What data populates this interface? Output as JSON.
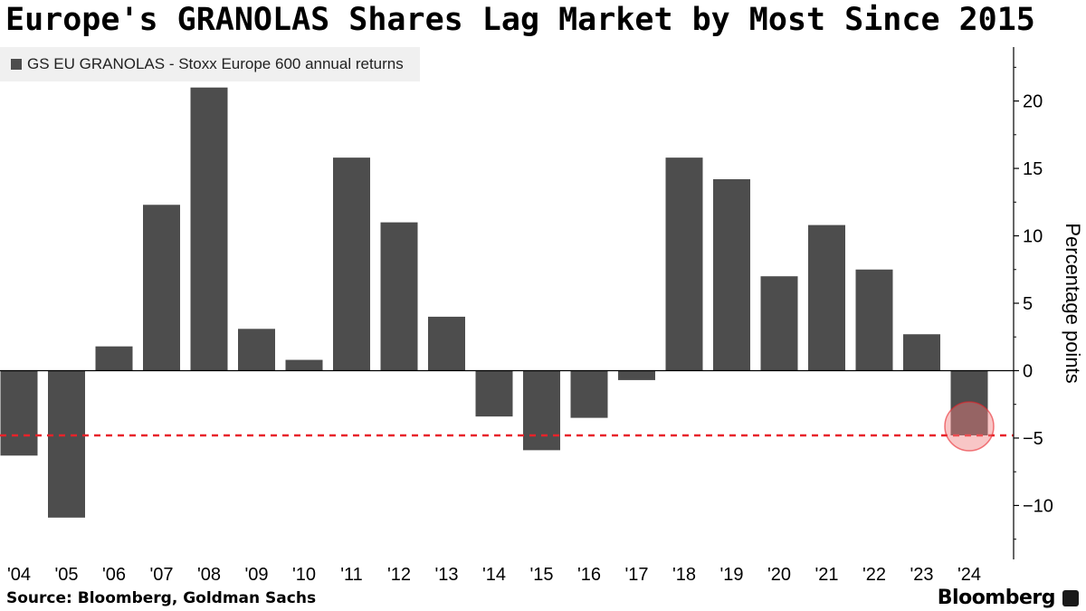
{
  "title": "Europe's GRANOLAS Shares Lag Market by Most Since 2015",
  "source": "Source: Bloomberg, Goldman Sachs",
  "brand": "Bloomberg",
  "colors": {
    "bar": "#4d4d4d",
    "reference_line": "#e8232a",
    "highlight": "#f08080"
  },
  "chart_data": {
    "type": "bar",
    "title": "Europe's GRANOLAS Shares Lag Market by Most Since 2015",
    "legend": "GS EU GRANOLAS - Stoxx Europe 600 annual returns",
    "legend_position": "top-left",
    "ylabel": "Percentage points",
    "xlabel": "",
    "ylim": [
      -14,
      24
    ],
    "yticks": [
      -10,
      -5,
      0,
      5,
      10,
      15,
      20
    ],
    "categories": [
      "'04",
      "'05",
      "'06",
      "'07",
      "'08",
      "'09",
      "'10",
      "'11",
      "'12",
      "'13",
      "'14",
      "'15",
      "'16",
      "'17",
      "'18",
      "'19",
      "'20",
      "'21",
      "'22",
      "'23",
      "'24"
    ],
    "values": [
      -6.3,
      -10.9,
      1.8,
      12.3,
      21.0,
      3.1,
      0.8,
      15.8,
      11.0,
      4.0,
      -3.4,
      -5.9,
      -3.5,
      -0.7,
      15.8,
      14.2,
      7.0,
      10.8,
      7.5,
      2.7,
      -4.8
    ],
    "reference_line": {
      "value": -4.8,
      "style": "dashed"
    },
    "highlight_category": "'24",
    "axis_position": "right",
    "grid": false
  }
}
